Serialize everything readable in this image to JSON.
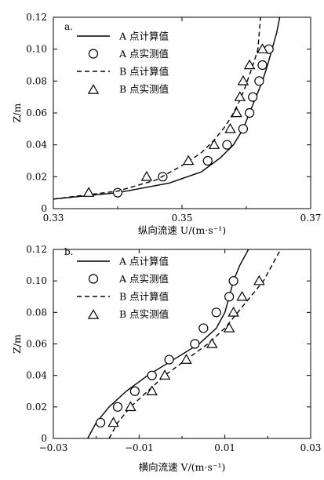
{
  "chart_data": [
    {
      "type": "scatter",
      "panel_label": "a.",
      "xlabel": "纵向流速 U/(m·s⁻¹)",
      "ylabel": "Z/m",
      "xlim": [
        0.33,
        0.37
      ],
      "ylim": [
        0,
        0.12
      ],
      "xticks": [
        "0.33",
        "0.35",
        "0.37"
      ],
      "yticks": [
        "0",
        "0.02",
        "0.04",
        "0.06",
        "0.08",
        "0.10",
        "0.12"
      ],
      "grid": false,
      "legend_position": "top-left",
      "series": [
        {
          "name": "A 点计算值",
          "kind": "line",
          "dash": "solid",
          "points": [
            [
              0.33,
              0.006
            ],
            [
              0.34,
              0.01
            ],
            [
              0.348,
              0.016
            ],
            [
              0.353,
              0.023
            ],
            [
              0.356,
              0.032
            ],
            [
              0.358,
              0.04
            ],
            [
              0.3595,
              0.05
            ],
            [
              0.3605,
              0.06
            ],
            [
              0.3615,
              0.07
            ],
            [
              0.3625,
              0.08
            ],
            [
              0.3633,
              0.09
            ],
            [
              0.364,
              0.1
            ],
            [
              0.3647,
              0.11
            ],
            [
              0.3652,
              0.12
            ]
          ]
        },
        {
          "name": "A 点实测值",
          "kind": "scatter",
          "marker": "circle",
          "points": [
            [
              0.34,
              0.01
            ],
            [
              0.347,
              0.02
            ],
            [
              0.354,
              0.03
            ],
            [
              0.357,
              0.04
            ],
            [
              0.3595,
              0.05
            ],
            [
              0.3605,
              0.06
            ],
            [
              0.361,
              0.07
            ],
            [
              0.362,
              0.08
            ],
            [
              0.3625,
              0.09
            ],
            [
              0.3635,
              0.1
            ]
          ]
        },
        {
          "name": "B 点计算值",
          "kind": "line",
          "dash": "dashed",
          "points": [
            [
              0.33,
              0.006
            ],
            [
              0.34,
              0.011
            ],
            [
              0.346,
              0.018
            ],
            [
              0.35,
              0.027
            ],
            [
              0.353,
              0.035
            ],
            [
              0.355,
              0.043
            ],
            [
              0.3568,
              0.052
            ],
            [
              0.358,
              0.06
            ],
            [
              0.359,
              0.068
            ],
            [
              0.3598,
              0.076
            ],
            [
              0.3605,
              0.084
            ],
            [
              0.3612,
              0.092
            ],
            [
              0.3618,
              0.1
            ],
            [
              0.362,
              0.11
            ],
            [
              0.3622,
              0.12
            ]
          ]
        },
        {
          "name": "B 点实测值",
          "kind": "scatter",
          "marker": "triangle",
          "points": [
            [
              0.3355,
              0.01
            ],
            [
              0.3445,
              0.02
            ],
            [
              0.351,
              0.03
            ],
            [
              0.355,
              0.04
            ],
            [
              0.3575,
              0.05
            ],
            [
              0.3585,
              0.06
            ],
            [
              0.359,
              0.07
            ],
            [
              0.3595,
              0.08
            ],
            [
              0.3605,
              0.09
            ],
            [
              0.3625,
              0.1
            ]
          ]
        }
      ]
    },
    {
      "type": "scatter",
      "panel_label": "b.",
      "xlabel": "横向流速 V/(m·s⁻¹)",
      "ylabel": "Z/m",
      "xlim": [
        -0.03,
        0.03
      ],
      "ylim": [
        0,
        0.12
      ],
      "xticks": [
        "−0.03",
        "−0.01",
        "0.01",
        "0.03"
      ],
      "yticks": [
        "0",
        "0.02",
        "0.04",
        "0.06",
        "0.08",
        "0.10",
        "0.12"
      ],
      "grid": false,
      "legend_position": "top-left",
      "series": [
        {
          "name": "A 点计算值",
          "kind": "line",
          "dash": "solid",
          "points": [
            [
              -0.022,
              0.0
            ],
            [
              -0.02,
              0.01
            ],
            [
              -0.017,
              0.02
            ],
            [
              -0.013,
              0.03
            ],
            [
              -0.008,
              0.04
            ],
            [
              -0.002,
              0.05
            ],
            [
              0.004,
              0.06
            ],
            [
              0.008,
              0.07
            ],
            [
              0.01,
              0.08
            ],
            [
              0.011,
              0.09
            ],
            [
              0.012,
              0.1
            ],
            [
              0.0135,
              0.11
            ],
            [
              0.0155,
              0.12
            ]
          ]
        },
        {
          "name": "A 点实测值",
          "kind": "scatter",
          "marker": "circle",
          "points": [
            [
              -0.019,
              0.01
            ],
            [
              -0.015,
              0.02
            ],
            [
              -0.011,
              0.03
            ],
            [
              -0.007,
              0.04
            ],
            [
              -0.003,
              0.05
            ],
            [
              0.003,
              0.06
            ],
            [
              0.005,
              0.07
            ],
            [
              0.008,
              0.08
            ],
            [
              0.011,
              0.09
            ],
            [
              0.012,
              0.1
            ]
          ]
        },
        {
          "name": "B 点计算值",
          "kind": "line",
          "dash": "dashed",
          "points": [
            [
              -0.017,
              0.0
            ],
            [
              -0.015,
              0.01
            ],
            [
              -0.012,
              0.02
            ],
            [
              -0.008,
              0.03
            ],
            [
              -0.004,
              0.04
            ],
            [
              0.001,
              0.05
            ],
            [
              0.006,
              0.06
            ],
            [
              0.01,
              0.07
            ],
            [
              0.013,
              0.08
            ],
            [
              0.016,
              0.09
            ],
            [
              0.019,
              0.1
            ],
            [
              0.021,
              0.11
            ],
            [
              0.023,
              0.12
            ]
          ]
        },
        {
          "name": "B 点实测值",
          "kind": "scatter",
          "marker": "triangle",
          "points": [
            [
              -0.016,
              0.01
            ],
            [
              -0.012,
              0.02
            ],
            [
              -0.007,
              0.03
            ],
            [
              -0.004,
              0.04
            ],
            [
              0.001,
              0.05
            ],
            [
              0.007,
              0.06
            ],
            [
              0.011,
              0.07
            ],
            [
              0.012,
              0.08
            ],
            [
              0.014,
              0.09
            ],
            [
              0.018,
              0.1
            ]
          ]
        }
      ]
    }
  ]
}
